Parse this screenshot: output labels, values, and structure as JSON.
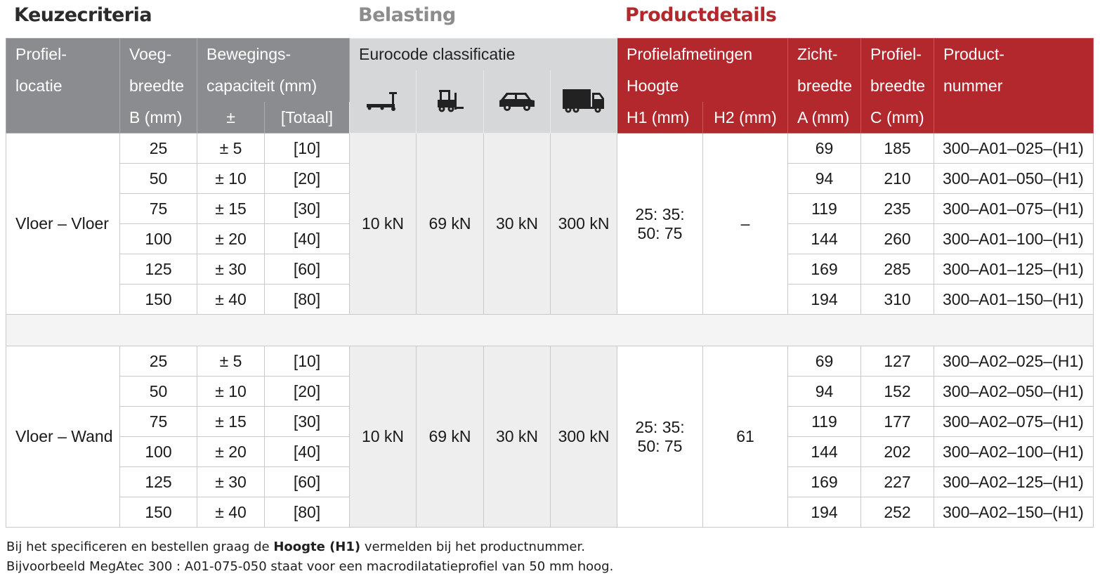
{
  "sections": {
    "keuzecriteria": "Keuzecriteria",
    "belasting": "Belasting",
    "productdetails": "Productdetails"
  },
  "header": {
    "profiel_l1": "Profiel-",
    "profiel_l2": "locatie",
    "voeg_l1": "Voeg-",
    "voeg_l2": "breedte",
    "voeg_l3": "B (mm)",
    "beweg_l1": "Bewegings-",
    "beweg_l2": "capaciteit (mm)",
    "beweg_pm": "±",
    "beweg_totaal": "[Totaal]",
    "eurocode": "Eurocode classificatie",
    "afm_l1": "Profielafmetingen",
    "afm_l2": "Hoogte",
    "h1": "H1 (mm)",
    "h2": "H2 (mm)",
    "zicht_l1": "Zicht-",
    "zicht_l2": "breedte",
    "zicht_l3": "A (mm)",
    "pbreedte_l1": "Profiel-",
    "pbreedte_l2": "breedte",
    "pbreedte_l3": "C (mm)",
    "prodnr_l1": "Product-",
    "prodnr_l2": "nummer"
  },
  "load_icons": [
    "pallet-truck-icon",
    "forklift-icon",
    "car-icon",
    "truck-icon"
  ],
  "groups": [
    {
      "location": "Vloer – Vloer",
      "loads": [
        "10 kN",
        "69 kN",
        "30 kN",
        "300 kN"
      ],
      "h1_l1": "25: 35:",
      "h1_l2": "50: 75",
      "h2": "–",
      "rows": [
        {
          "b": "25",
          "pm": "± 5",
          "tot": "[10]",
          "a": "69",
          "c": "185",
          "nr": "300–A01–025–(H1)"
        },
        {
          "b": "50",
          "pm": "± 10",
          "tot": "[20]",
          "a": "94",
          "c": "210",
          "nr": "300–A01–050–(H1)"
        },
        {
          "b": "75",
          "pm": "± 15",
          "tot": "[30]",
          "a": "119",
          "c": "235",
          "nr": "300–A01–075–(H1)"
        },
        {
          "b": "100",
          "pm": "± 20",
          "tot": "[40]",
          "a": "144",
          "c": "260",
          "nr": "300–A01–100–(H1)"
        },
        {
          "b": "125",
          "pm": "± 30",
          "tot": "[60]",
          "a": "169",
          "c": "285",
          "nr": "300–A01–125–(H1)"
        },
        {
          "b": "150",
          "pm": "± 40",
          "tot": "[80]",
          "a": "194",
          "c": "310",
          "nr": "300–A01–150–(H1)"
        }
      ]
    },
    {
      "location": "Vloer – Wand",
      "loads": [
        "10 kN",
        "69 kN",
        "30 kN",
        "300 kN"
      ],
      "h1_l1": "25: 35:",
      "h1_l2": "50: 75",
      "h2": "61",
      "rows": [
        {
          "b": "25",
          "pm": "± 5",
          "tot": "[10]",
          "a": "69",
          "c": "127",
          "nr": "300–A02–025–(H1)"
        },
        {
          "b": "50",
          "pm": "± 10",
          "tot": "[20]",
          "a": "94",
          "c": "152",
          "nr": "300–A02–050–(H1)"
        },
        {
          "b": "75",
          "pm": "± 15",
          "tot": "[30]",
          "a": "119",
          "c": "177",
          "nr": "300–A02–075–(H1)"
        },
        {
          "b": "100",
          "pm": "± 20",
          "tot": "[40]",
          "a": "144",
          "c": "202",
          "nr": "300–A02–100–(H1)"
        },
        {
          "b": "125",
          "pm": "± 30",
          "tot": "[60]",
          "a": "169",
          "c": "227",
          "nr": "300–A02–125–(H1)"
        },
        {
          "b": "150",
          "pm": "± 40",
          "tot": "[80]",
          "a": "194",
          "c": "252",
          "nr": "300–A02–150–(H1)"
        }
      ]
    }
  ],
  "notes": {
    "line1_pre": "Bij het specificeren en bestellen graag de ",
    "line1_bold": "Hoogte (H1)",
    "line1_post": " vermelden bij het productnummer.",
    "line2": "Bijvoorbeeld MegAtec 300 : A01-075-050 staat voor een macrodilatatieprofiel van 50 mm hoog."
  }
}
